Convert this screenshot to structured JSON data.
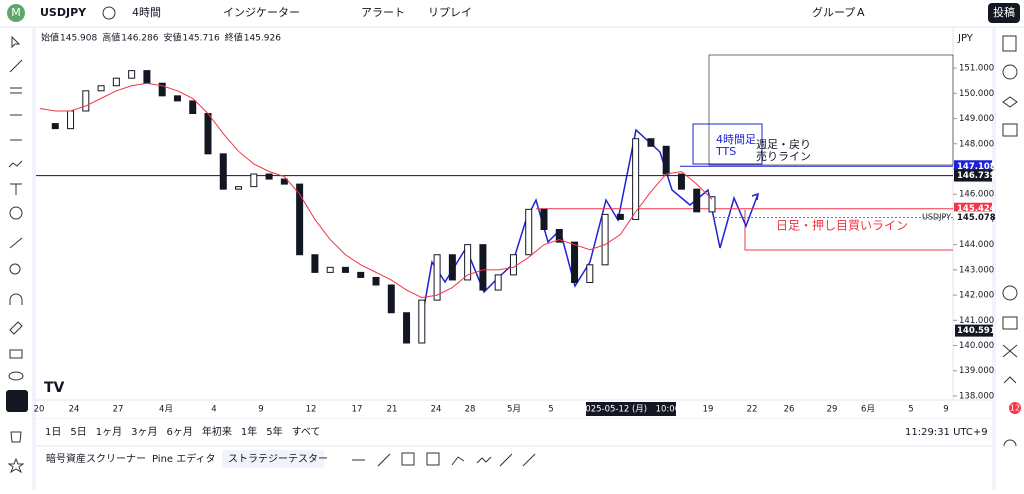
{
  "toolbar": {
    "avatar": "M",
    "symbol": "USDJPY",
    "interval": "4時間",
    "indicators": "インジケーター",
    "alert": "アラート",
    "replay": "リプレイ",
    "group": "グループ",
    "group_id": "A",
    "post": "投稿"
  },
  "chart": {
    "type": "candlestick",
    "currency": "JPY",
    "ohlc": [
      {
        "label": "始値",
        "value": "145.908"
      },
      {
        "label": "高値",
        "value": "146.286"
      },
      {
        "label": "安値",
        "value": "145.716"
      },
      {
        "label": "終値",
        "value": "145.926"
      }
    ],
    "ylim": [
      137.84,
      152.59
    ],
    "yticks": [
      {
        "value": 151,
        "label": "151.000"
      },
      {
        "value": 150,
        "label": "150.000"
      },
      {
        "value": 149,
        "label": "149.000"
      },
      {
        "value": 148,
        "label": "148.000"
      },
      {
        "value": 147,
        "label": "147.000"
      },
      {
        "value": 146,
        "label": "146.000"
      },
      {
        "value": 145,
        "label": "145.000"
      },
      {
        "value": 144,
        "label": "144.000"
      },
      {
        "value": 143,
        "label": "143.000"
      },
      {
        "value": 142,
        "label": "142.000"
      },
      {
        "value": 141,
        "label": "141.000"
      },
      {
        "value": 140,
        "label": "140.000"
      },
      {
        "value": 139,
        "label": "139.000"
      },
      {
        "value": 138,
        "label": "138.000"
      }
    ],
    "xlabels": [
      "20",
      "24",
      "27",
      "4月",
      "4",
      "9",
      "12",
      "17",
      "21",
      "24",
      "28",
      "5月",
      "5",
      "2025-05-12 (月)　10:00",
      "19",
      "22",
      "26",
      "29",
      "6月",
      "5",
      "9"
    ],
    "closes": [
      148.8,
      148.6,
      149.3,
      150.1,
      150.3,
      150.6,
      150.9,
      150.4,
      149.9,
      149.7,
      149.2,
      147.6,
      146.2,
      146.3,
      146.8,
      146.6,
      146.4,
      143.6,
      142.9,
      143.1,
      142.9,
      142.7,
      142.4,
      141.3,
      140.1,
      141.8,
      143.6,
      142.6,
      144.0,
      142.2,
      142.8,
      143.6,
      145.4,
      144.6,
      144.1,
      142.5,
      143.2,
      145.2,
      145.0,
      148.2,
      147.9,
      146.8,
      146.2,
      145.3,
      145.9
    ],
    "ma": [
      149.4,
      149.3,
      149.3,
      149.5,
      149.8,
      150.1,
      150.3,
      150.4,
      150.3,
      150.1,
      149.8,
      149.2,
      148.4,
      147.7,
      147.2,
      146.9,
      146.7,
      146.0,
      145.0,
      144.2,
      143.6,
      143.2,
      142.9,
      142.6,
      142.2,
      141.9,
      142.0,
      142.3,
      142.8,
      143.0,
      143.0,
      143.1,
      143.5,
      144.0,
      144.2,
      144.0,
      143.8,
      144.0,
      144.4,
      145.3,
      146.1,
      146.8,
      146.9,
      146.4,
      145.8
    ],
    "price_labels": [
      {
        "value": 147.108,
        "label": "147.108",
        "color": "#1e22d6"
      },
      {
        "value": 146.739,
        "label": "146.739",
        "color": "#131722"
      },
      {
        "value": 145.424,
        "label": "145.424",
        "color": "#f23645"
      },
      {
        "value": 145.078,
        "label": "145.078",
        "color": "#ffffff"
      },
      {
        "value": 140.591,
        "label": "140.591",
        "color": "#131722"
      }
    ],
    "symbol_tag": "USDJPY",
    "annotations": {
      "tts": "4時間足\nTTS",
      "weekly": "週足・戻り\n売りライン",
      "daily": "日足・押し目買いライン"
    }
  },
  "bottom": {
    "ranges": [
      "1日",
      "5日",
      "1ヶ月",
      "3ヶ月",
      "6ヶ月",
      "年初来",
      "1年",
      "5年",
      "すべて"
    ],
    "clock": "11:29:31 UTC+9"
  },
  "tabs": [
    "暗号資産スクリーナー",
    "Pine エディタ",
    "ストラテジーテスター"
  ],
  "badge": "12"
}
